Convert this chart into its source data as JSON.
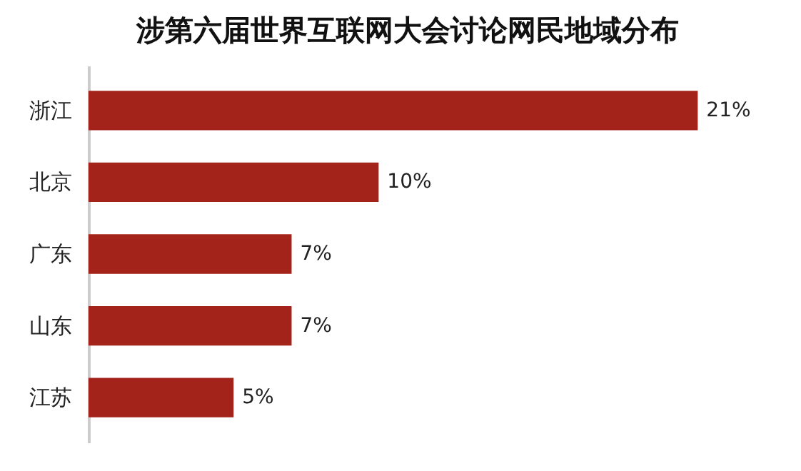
{
  "chart_data": {
    "type": "bar",
    "orientation": "horizontal",
    "title": "涉第六届世界互联网大会讨论网民地域分布",
    "categories": [
      "浙江",
      "北京",
      "广东",
      "山东",
      "江苏"
    ],
    "values": [
      21,
      10,
      7,
      7,
      5
    ],
    "value_labels": [
      "21%",
      "10%",
      "7%",
      "7%",
      "5%"
    ],
    "color": "#a3231a",
    "tick_labels": "y"
  }
}
